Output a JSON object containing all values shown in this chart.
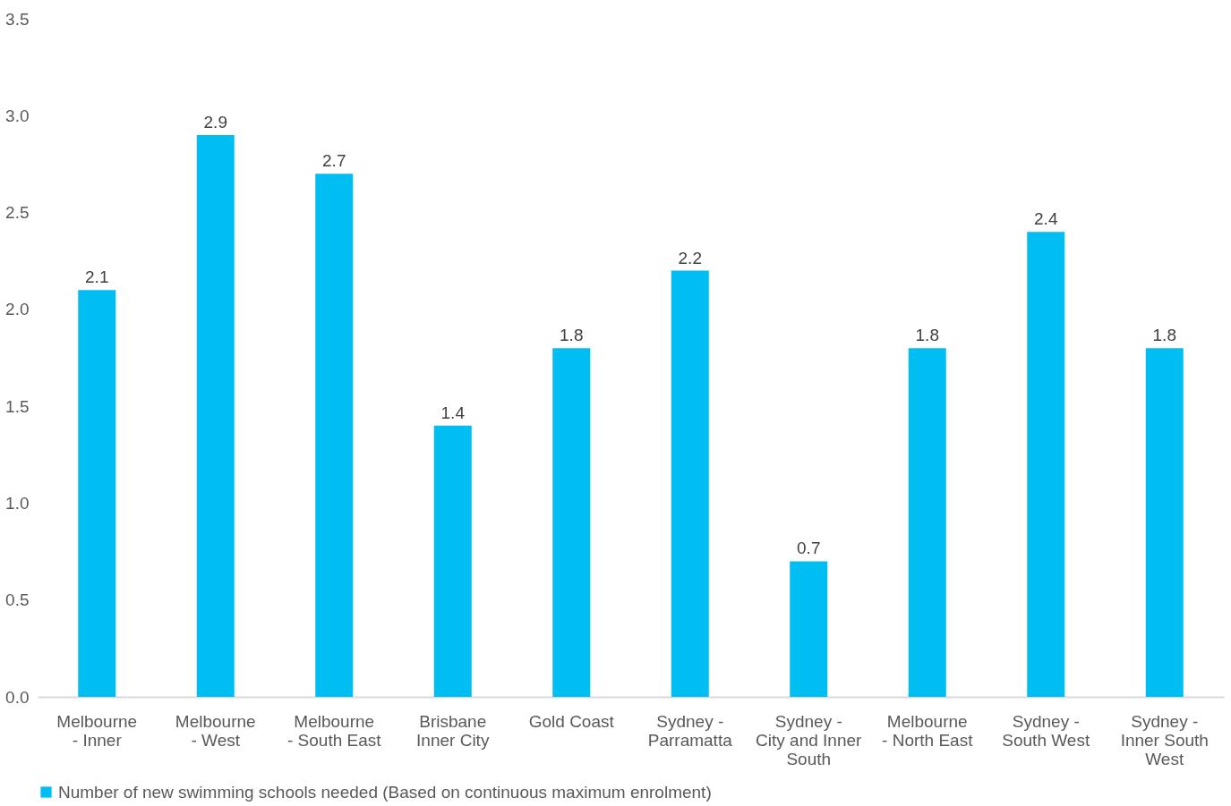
{
  "chart_data": {
    "type": "bar",
    "categories": [
      "Melbourne\n- Inner",
      "Melbourne\n- West",
      "Melbourne\n- South East",
      "Brisbane\nInner City",
      "Gold Coast",
      "Sydney -\nParramatta",
      "Sydney -\nCity and Inner\nSouth",
      "Melbourne\n- North East",
      "Sydney -\nSouth West",
      "Sydney -\nInner South\nWest"
    ],
    "series": [
      {
        "name": "Number of new swimming schools needed (Based on continuous maximum enrolment)",
        "color": "#00bdf2",
        "values": [
          2.1,
          2.9,
          2.7,
          1.4,
          1.8,
          2.2,
          0.7,
          1.8,
          2.4,
          1.8
        ]
      }
    ],
    "ylim": [
      0,
      3.5
    ],
    "yticks": [
      {
        "value": 0,
        "label": "0.0"
      },
      {
        "value": 0.5,
        "label": "0.5"
      },
      {
        "value": 1,
        "label": "1.0"
      },
      {
        "value": 1.5,
        "label": "1.5"
      },
      {
        "value": 2,
        "label": "2.0"
      },
      {
        "value": 2.5,
        "label": "2.5"
      },
      {
        "value": 3,
        "label": "3.0"
      },
      {
        "value": 3.5,
        "label": "3.5"
      }
    ],
    "data_labels": true,
    "grid": false,
    "legend": "bottom"
  }
}
